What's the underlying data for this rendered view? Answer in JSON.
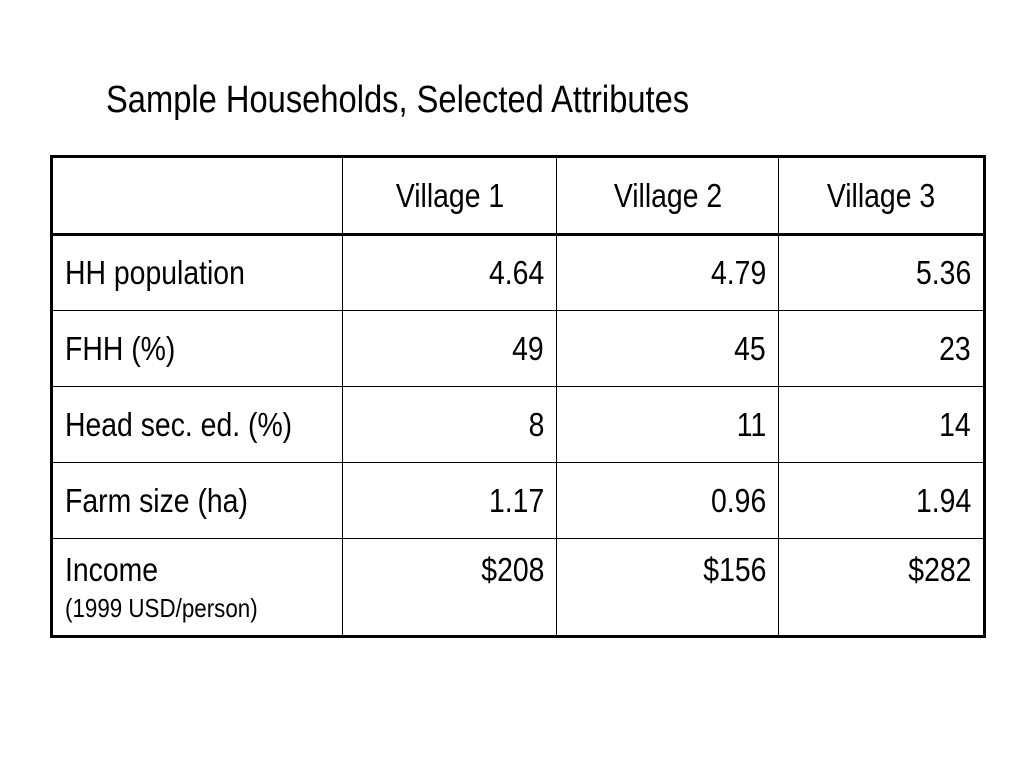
{
  "title": "Sample Households, Selected Attributes",
  "table": {
    "columns": [
      "",
      "Village 1",
      "Village 2",
      "Village 3"
    ],
    "rows": [
      {
        "label": "HH population",
        "values": [
          "4.64",
          "4.79",
          "5.36"
        ]
      },
      {
        "label": "FHH (%)",
        "values": [
          "49",
          "45",
          "23"
        ]
      },
      {
        "label": "Head sec. ed. (%)",
        "values": [
          "8",
          "11",
          "14"
        ]
      },
      {
        "label": "Farm size (ha)",
        "values": [
          "1.17",
          "0.96",
          "1.94"
        ]
      },
      {
        "label": "Income",
        "sublabel": "(1999 USD/person)",
        "values": [
          "$208",
          "$156",
          "$282"
        ]
      }
    ]
  }
}
